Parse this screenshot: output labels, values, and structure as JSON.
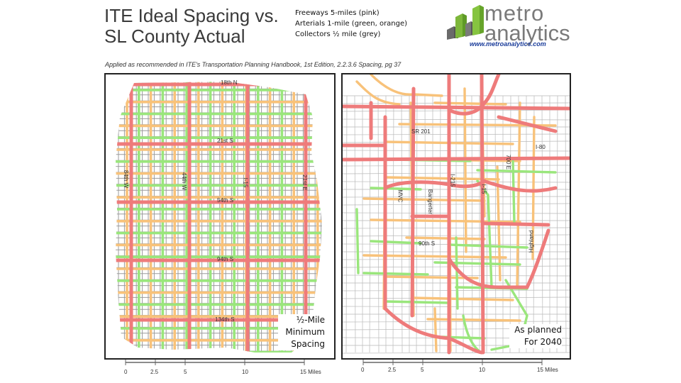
{
  "title": {
    "line1": "ITE Ideal Spacing vs.",
    "line2": "SL County Actual"
  },
  "legend": {
    "freeways": "Freeways 5-miles (pink)",
    "arterials": "Arterials 1-mile (green, orange)",
    "collectors": "Collectors ½ mile (grey)"
  },
  "logo": {
    "line1": "metro",
    "line2": "analytics",
    "url": "www.metroanalytics.com"
  },
  "subcaption": "Applied as recommended in ITE's Transportation Planning Handbook, 1st Edition, 2.2.3.6 Spacing, pg 37",
  "left_map": {
    "caption": [
      "½-Mile",
      "Minimum",
      "Spacing"
    ],
    "labels": {
      "n18": "18th N",
      "s21": "21st S",
      "s54": "54th S",
      "s94": "94th S",
      "s134": "134th S",
      "w84": "84th W",
      "w44": "44th W",
      "i15": "I-15",
      "e21": "21st E"
    }
  },
  "right_map": {
    "caption": [
      "As planned",
      "For 2040"
    ],
    "labels": {
      "sr201": "SR 201",
      "i80": "I-80",
      "e700": "700 E",
      "i215": "I-215",
      "i15": "I-15",
      "bangerter": "Bangerter",
      "mvc": "MVC",
      "s90": "90th S",
      "highland": "Highland"
    }
  },
  "scalebar": {
    "ticks": [
      "0",
      "2.5",
      "5",
      "10",
      "15 Miles"
    ]
  },
  "colors": {
    "freeway": "#ee7b7b",
    "arterial_green": "#9ae67c",
    "arterial_orange": "#f8c27a",
    "collector": "#9b9b9b",
    "local": "#b9b9b9"
  },
  "icons": {
    "logo": "bar-chart-building-icon"
  }
}
